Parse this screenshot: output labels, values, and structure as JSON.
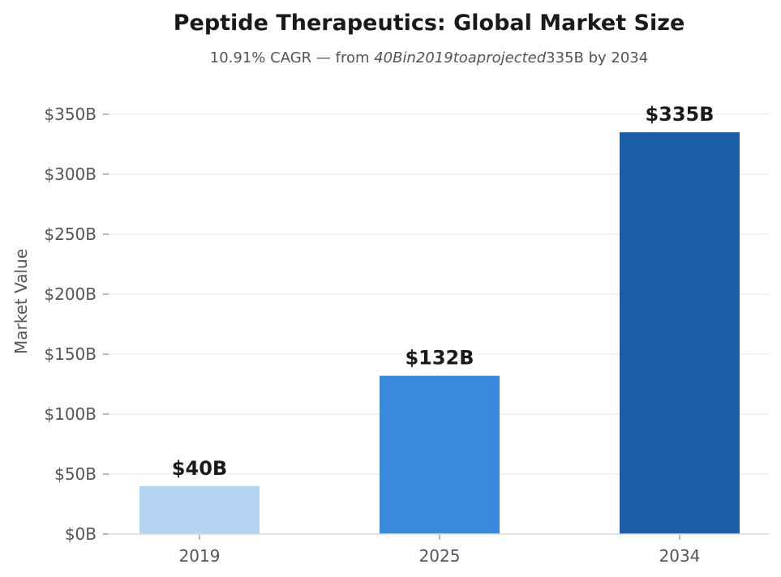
{
  "chart_data": {
    "type": "bar",
    "title": "Peptide Therapeutics: Global Market Size",
    "subtitle": {
      "part1": "10.91% CAGR — from ",
      "part2": "40Bin2019toaprojected",
      "part3": "335B by 2034"
    },
    "xlabel": "",
    "ylabel": "Market Value",
    "categories": [
      "2019",
      "2025",
      "2034"
    ],
    "values": [
      40,
      132,
      335
    ],
    "value_labels": [
      "$40B",
      "$132B",
      "$335B"
    ],
    "bar_colors": [
      "#b3d4f2",
      "#3a8bdf",
      "#1c5fa6"
    ],
    "ylim": [
      0,
      350
    ],
    "yticks": [
      0,
      50,
      100,
      150,
      200,
      250,
      300,
      350
    ],
    "ytick_labels": [
      "$0B",
      "$50B",
      "$100B",
      "$150B",
      "$200B",
      "$250B",
      "$300B",
      "$350B"
    ],
    "grid": true,
    "grid_axis": "y",
    "legend": "none"
  }
}
